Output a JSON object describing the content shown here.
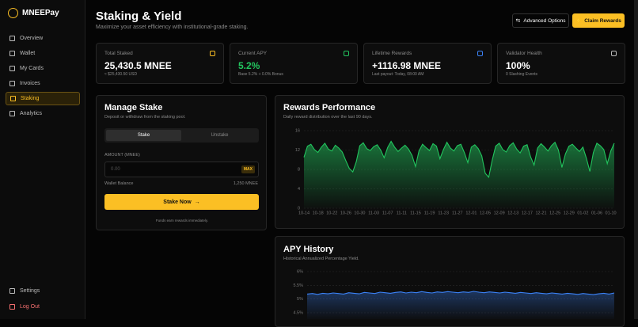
{
  "sidebar": {
    "brand": "MNEEPay",
    "nav": [
      "Overview",
      "Wallet",
      "My Cards",
      "Invoices",
      "Staking",
      "Analytics"
    ],
    "active": 4,
    "footer": [
      "Settings",
      "Log Out"
    ]
  },
  "header": {
    "title": "Staking & Yield",
    "subtitle": "Maximize your asset efficiency with institutional-grade staking.",
    "buttons": [
      "Advanced Options",
      "Claim Rewards"
    ]
  },
  "stats": [
    {
      "label": "Total Staked",
      "value": "25,430.5 MNEE",
      "note": "≈ $25,430.50 USD"
    },
    {
      "label": "Current APY",
      "value": "5.2%",
      "note": "Base 5.2% + 0.0% Bonus"
    },
    {
      "label": "Lifetime Rewards",
      "value": "+1116.98 MNEE",
      "note": "Last payout: Today, 08:00 AM"
    },
    {
      "label": "Validator Health",
      "value": "100%",
      "note": "0 Slashing Events"
    }
  ],
  "manage": {
    "title": "Manage Stake",
    "subtitle": "Deposit or withdraw from the staking pool.",
    "tabs": [
      "Stake",
      "Unstake"
    ],
    "amount_label": "AMOUNT (MNEE)",
    "placeholder": "0.00",
    "max": "MAX",
    "balance_label": "Wallet Balance",
    "balance": "1,250 MNEE",
    "button": "Stake Now",
    "note": "Funds earn rewards immediately."
  },
  "chart_data": [
    {
      "type": "area",
      "title": "Rewards Performance",
      "subtitle": "Daily reward distribution over the last 90 days.",
      "color": "#22c55e",
      "categories": [
        "10-14",
        null,
        null,
        null,
        "10-18",
        null,
        null,
        null,
        "10-22",
        null,
        null,
        null,
        "10-26",
        null,
        null,
        null,
        "10-30",
        null,
        null,
        null,
        "11-03",
        null,
        null,
        null,
        "11-07",
        null,
        null,
        null,
        "11-11",
        null,
        null,
        null,
        "11-15",
        null,
        null,
        null,
        "11-19",
        null,
        null,
        null,
        "11-23",
        null,
        null,
        null,
        "11-27",
        null,
        null,
        null,
        "12-01",
        null,
        null,
        null,
        "12-05",
        null,
        null,
        null,
        "12-09",
        null,
        null,
        null,
        "12-13",
        null,
        null,
        null,
        "12-17",
        null,
        null,
        null,
        "12-21",
        null,
        null,
        null,
        "12-25",
        null,
        null,
        null,
        "12-29",
        null,
        null,
        null,
        "01-02",
        null,
        null,
        null,
        "01-06",
        null,
        null,
        null,
        "01-10",
        null
      ],
      "values": [
        10.5,
        12.8,
        13.2,
        12.1,
        11.5,
        12.6,
        13.4,
        12.2,
        11.8,
        13.0,
        12.4,
        11.6,
        9.8,
        8.2,
        7.5,
        9.6,
        12.9,
        13.5,
        12.3,
        11.9,
        12.7,
        13.1,
        12.0,
        10.4,
        12.5,
        13.8,
        12.6,
        11.7,
        12.4,
        13.0,
        12.2,
        10.9,
        8.6,
        11.8,
        13.2,
        12.5,
        11.9,
        13.3,
        12.8,
        10.2,
        12.1,
        13.6,
        12.4,
        11.8,
        12.9,
        13.2,
        11.5,
        9.4,
        12.6,
        13.1,
        12.3,
        10.8,
        7.2,
        6.4,
        9.9,
        12.8,
        13.4,
        12.1,
        11.6,
        12.9,
        13.5,
        12.2,
        11.4,
        12.8,
        13.1,
        10.6,
        8.9,
        12.4,
        13.3,
        12.6,
        11.8,
        12.9,
        13.6,
        12.0,
        8.4,
        11.2,
        12.8,
        13.2,
        12.4,
        11.7,
        12.6,
        10.3,
        7.6,
        11.5,
        13.4,
        12.9,
        12.1,
        9.2,
        11.8,
        13.4
      ],
      "ylim": [
        0,
        16
      ],
      "yticks": [
        0,
        4,
        8,
        12,
        16
      ],
      "grid": true
    },
    {
      "type": "line",
      "title": "APY History",
      "subtitle": "Historical Annualized Percentage Yield.",
      "color": "#3b82f6",
      "values": [
        5.18,
        5.2,
        5.17,
        5.21,
        5.19,
        5.22,
        5.2,
        5.18,
        5.23,
        5.21,
        5.19,
        5.24,
        5.22,
        5.2,
        5.25,
        5.23,
        5.21,
        5.24,
        5.26,
        5.22,
        5.25,
        5.23,
        5.27,
        5.24,
        5.22,
        5.26,
        5.24,
        5.27,
        5.25,
        5.23,
        5.26,
        5.24,
        5.28,
        5.25,
        5.23,
        5.26,
        5.24,
        5.22,
        5.25,
        5.23,
        5.21,
        5.24,
        5.22,
        5.2,
        5.23,
        5.21,
        5.19,
        5.22,
        5.2,
        5.18,
        5.21,
        5.19,
        5.17,
        5.2,
        5.18,
        5.16,
        5.19,
        5.21,
        5.18,
        5.22
      ],
      "ylim": [
        4.5,
        6
      ],
      "yticks": [
        {
          "value": 6,
          "label": "6%"
        },
        {
          "value": 5.5,
          "label": "5.5%"
        },
        {
          "value": 5,
          "label": "5%"
        },
        {
          "value": 4.5,
          "label": "4.5%"
        }
      ],
      "grid": true
    }
  ]
}
